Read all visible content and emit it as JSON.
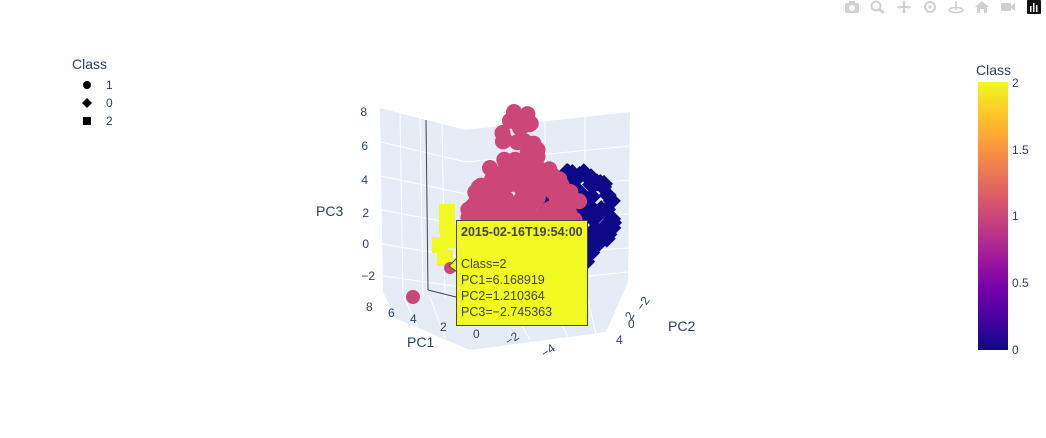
{
  "modebar": {
    "buttons": [
      "camera-icon",
      "zoom-icon",
      "pan-icon",
      "orbit-icon",
      "turntable-icon",
      "home-icon",
      "video-camera-icon",
      "plotly-logo-icon"
    ]
  },
  "legend": {
    "title": "Class",
    "items": [
      {
        "label": "1",
        "symbol": "circle"
      },
      {
        "label": "0",
        "symbol": "diamond"
      },
      {
        "label": "2",
        "symbol": "square"
      }
    ]
  },
  "colorbar": {
    "title": "Class",
    "ticks": [
      "2",
      "1.5",
      "1",
      "0.5",
      "0"
    ],
    "colors": [
      "#0d0887",
      "#46039f",
      "#7201a8",
      "#9c179e",
      "#bd3786",
      "#d8576b",
      "#ed7953",
      "#fb9f3a",
      "#fdca26",
      "#f0f921"
    ]
  },
  "chart_data": {
    "type": "scatter",
    "dimensions": "3d",
    "axes": {
      "x": {
        "label": "PC1",
        "ticks": [
          "8",
          "6",
          "4",
          "2",
          "0",
          "−2",
          "−4"
        ]
      },
      "y": {
        "label": "PC2",
        "ticks": [
          "−2",
          "0",
          "2",
          "4"
        ]
      },
      "z": {
        "label": "PC3",
        "ticks": [
          "8",
          "6",
          "4",
          "2",
          "0",
          "−2"
        ]
      }
    },
    "series": [
      {
        "name": "1",
        "symbol": "circle",
        "color": "#cc4778",
        "points": [
          [
            7.5,
            2,
            -3.5
          ],
          [
            5.5,
            1.5,
            -1.6
          ],
          [
            1,
            -0.5,
            7.5
          ],
          [
            0.8,
            -0.3,
            6.5
          ],
          [
            0.5,
            0,
            5
          ],
          [
            0,
            0.2,
            3.5
          ],
          [
            -0.5,
            0.5,
            2.5
          ],
          [
            0.5,
            -0.5,
            2
          ]
        ]
      },
      {
        "name": "0",
        "symbol": "diamond",
        "color": "#0d0887",
        "points": [
          [
            -2,
            -1,
            1
          ],
          [
            -3,
            -0.5,
            1.5
          ],
          [
            -3.5,
            0,
            0.5
          ],
          [
            -2.5,
            0.5,
            0
          ],
          [
            -4,
            -1,
            1
          ]
        ]
      },
      {
        "name": "2",
        "symbol": "square",
        "color": "#f0f921",
        "points": [
          [
            6.5,
            0.5,
            1.5
          ],
          [
            6.2,
            1.2,
            -0.5
          ],
          [
            6.0,
            1.0,
            -1.5
          ],
          [
            6.168919,
            1.210364,
            -2.745363
          ]
        ]
      }
    ]
  },
  "tooltip": {
    "title": "2015-02-16T19:54:00",
    "lines": [
      "Class=2",
      "PC1=6.168919",
      "PC2=1.210364",
      "PC3=−2.745363"
    ]
  },
  "axis_labels": {
    "x": "PC1",
    "y": "PC2",
    "z": "PC3"
  }
}
